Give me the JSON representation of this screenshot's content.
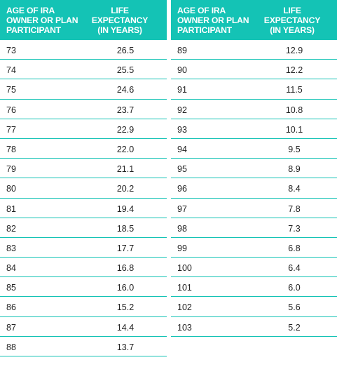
{
  "headers": {
    "age": "AGE OF IRA\nOWNER OR PLAN\nPARTICIPANT",
    "life": "LIFE\nEXPECTANCY\n(IN YEARS)"
  },
  "left_table": {
    "rows": [
      {
        "age": "73",
        "life": "26.5"
      },
      {
        "age": "74",
        "life": "25.5"
      },
      {
        "age": "75",
        "life": "24.6"
      },
      {
        "age": "76",
        "life": "23.7"
      },
      {
        "age": "77",
        "life": "22.9"
      },
      {
        "age": "78",
        "life": "22.0"
      },
      {
        "age": "79",
        "life": "21.1"
      },
      {
        "age": "80",
        "life": "20.2"
      },
      {
        "age": "81",
        "life": "19.4"
      },
      {
        "age": "82",
        "life": "18.5"
      },
      {
        "age": "83",
        "life": "17.7"
      },
      {
        "age": "84",
        "life": "16.8"
      },
      {
        "age": "85",
        "life": "16.0"
      },
      {
        "age": "86",
        "life": "15.2"
      },
      {
        "age": "87",
        "life": "14.4"
      },
      {
        "age": "88",
        "life": "13.7"
      }
    ]
  },
  "right_table": {
    "rows": [
      {
        "age": "89",
        "life": "12.9"
      },
      {
        "age": "90",
        "life": "12.2"
      },
      {
        "age": "91",
        "life": "11.5"
      },
      {
        "age": "92",
        "life": "10.8"
      },
      {
        "age": "93",
        "life": "10.1"
      },
      {
        "age": "94",
        "life": "9.5"
      },
      {
        "age": "95",
        "life": "8.9"
      },
      {
        "age": "96",
        "life": "8.4"
      },
      {
        "age": "97",
        "life": "7.8"
      },
      {
        "age": "98",
        "life": "7.3"
      },
      {
        "age": "99",
        "life": "6.8"
      },
      {
        "age": "100",
        "life": "6.4"
      },
      {
        "age": "101",
        "life": "6.0"
      },
      {
        "age": "102",
        "life": "5.6"
      },
      {
        "age": "103",
        "life": "5.2"
      }
    ]
  },
  "colors": {
    "header_bg": "#14c3b5",
    "header_text": "#ffffff",
    "row_divider": "#14c3b5"
  }
}
